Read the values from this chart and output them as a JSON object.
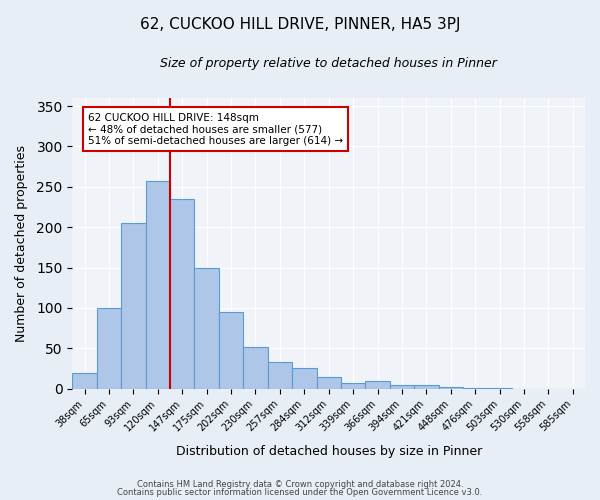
{
  "title": "62, CUCKOO HILL DRIVE, PINNER, HA5 3PJ",
  "subtitle": "Size of property relative to detached houses in Pinner",
  "xlabel": "Distribution of detached houses by size in Pinner",
  "ylabel": "Number of detached properties",
  "bar_labels": [
    "38sqm",
    "65sqm",
    "93sqm",
    "120sqm",
    "147sqm",
    "175sqm",
    "202sqm",
    "230sqm",
    "257sqm",
    "284sqm",
    "312sqm",
    "339sqm",
    "366sqm",
    "394sqm",
    "421sqm",
    "448sqm",
    "476sqm",
    "503sqm",
    "530sqm",
    "558sqm",
    "585sqm"
  ],
  "bar_values": [
    19,
    100,
    205,
    257,
    235,
    150,
    95,
    52,
    33,
    26,
    15,
    7,
    10,
    5,
    5,
    2,
    1,
    1,
    0,
    0,
    0
  ],
  "bar_color": "#aec6e8",
  "bar_edge_color": "#5b9bd5",
  "vline_x": 4,
  "vline_color": "#cc0000",
  "annotation_title": "62 CUCKOO HILL DRIVE: 148sqm",
  "annotation_line1": "← 48% of detached houses are smaller (577)",
  "annotation_line2": "51% of semi-detached houses are larger (614) →",
  "annotation_box_color": "#cc0000",
  "ylim": [
    0,
    360
  ],
  "yticks": [
    0,
    50,
    100,
    150,
    200,
    250,
    300,
    350
  ],
  "footer1": "Contains HM Land Registry data © Crown copyright and database right 2024.",
  "footer2": "Contains public sector information licensed under the Open Government Licence v3.0.",
  "bg_color": "#e8eef5",
  "plot_bg_color": "#f0f4f9"
}
